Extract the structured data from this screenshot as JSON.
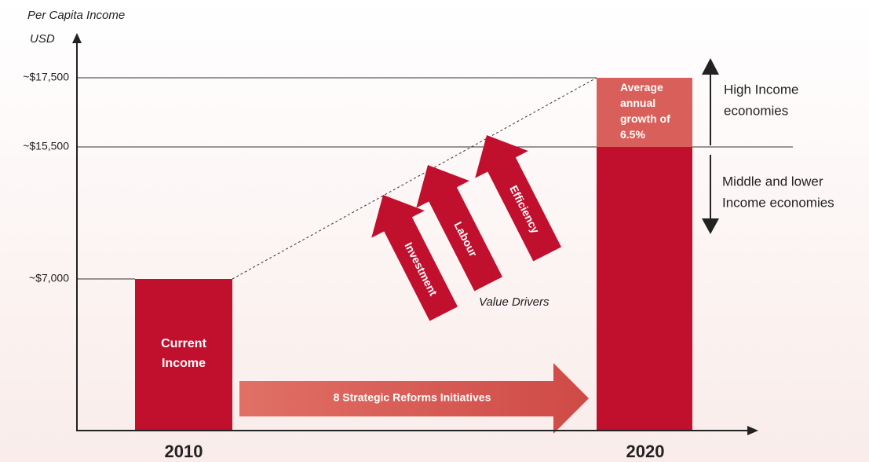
{
  "axis": {
    "title": "Per Capita Income",
    "unit": "USD",
    "ticks": [
      "~$17,500",
      "~$15,500",
      "~$7,000"
    ]
  },
  "bars": [
    {
      "label": "Current Income",
      "year": "2010"
    },
    {
      "label": "Average annual growth of 6.5%",
      "year": "2020"
    }
  ],
  "reforms": "8 Strategic Reforms Initiatives",
  "drivers": {
    "items": [
      "Investment",
      "Labour",
      "Efficiency"
    ],
    "caption": "Value Drivers"
  },
  "bands": {
    "high": [
      "High Income",
      "economies"
    ],
    "low": [
      "Middle and lower",
      "Income economies"
    ]
  }
}
